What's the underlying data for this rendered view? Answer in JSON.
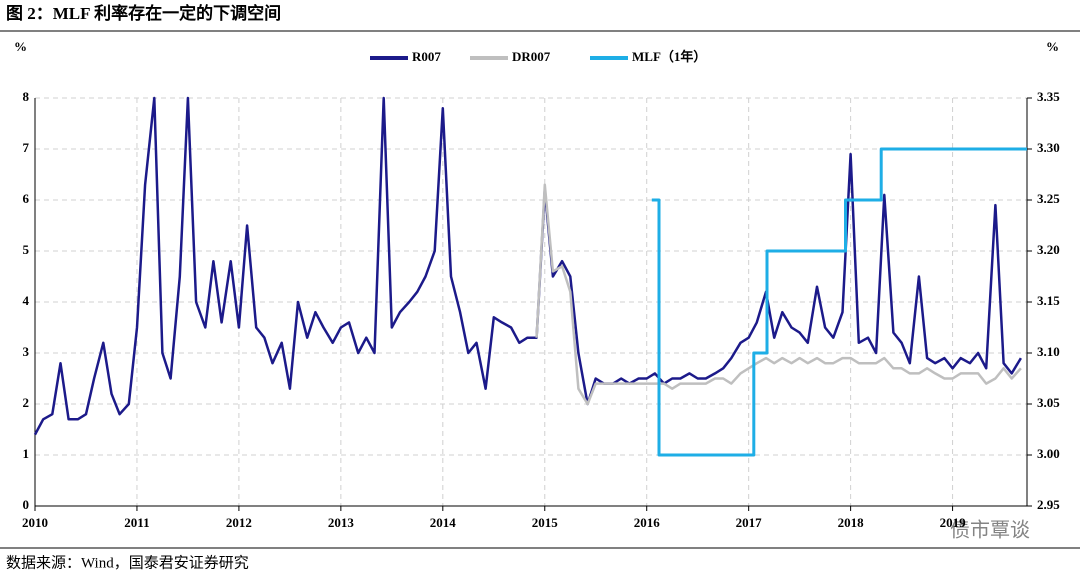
{
  "chart_data": {
    "type": "line",
    "title": "图 2：MLF 利率存在一定的下调空间",
    "y_unit": "%",
    "y2_unit": "%",
    "source": "数据来源：Wind，国泰君安证券研究",
    "watermark": "债市覃谈",
    "xlim": [
      2010,
      2019.73
    ],
    "xticks": [
      2010,
      2011,
      2012,
      2013,
      2014,
      2015,
      2016,
      2017,
      2018,
      2019
    ],
    "ylim": [
      0,
      8
    ],
    "yticks": [
      0,
      1,
      2,
      3,
      4,
      5,
      6,
      7,
      8
    ],
    "y2lim": [
      2.95,
      3.35
    ],
    "y2ticks": [
      2.95,
      {
        "value": 3.0,
        "label": "3.00"
      },
      3.05,
      {
        "value": 3.1,
        "label": "3.10"
      },
      3.15,
      {
        "value": 3.2,
        "label": "3.20"
      },
      3.25,
      {
        "value": 3.3,
        "label": "3.30"
      },
      3.35
    ],
    "grid": true,
    "legend": "top",
    "series": [
      {
        "name": "R007",
        "color": "#1c1a8a",
        "x": [
          2010.0,
          2010.08,
          2010.17,
          2010.25,
          2010.33,
          2010.42,
          2010.5,
          2010.58,
          2010.67,
          2010.75,
          2010.83,
          2010.92,
          2011.0,
          2011.08,
          2011.17,
          2011.25,
          2011.33,
          2011.42,
          2011.5,
          2011.58,
          2011.67,
          2011.75,
          2011.83,
          2011.92,
          2012.0,
          2012.08,
          2012.17,
          2012.25,
          2012.33,
          2012.42,
          2012.5,
          2012.58,
          2012.67,
          2012.75,
          2012.83,
          2012.92,
          2013.0,
          2013.08,
          2013.17,
          2013.25,
          2013.33,
          2013.42,
          2013.5,
          2013.58,
          2013.67,
          2013.75,
          2013.83,
          2013.92,
          2014.0,
          2014.08,
          2014.17,
          2014.25,
          2014.33,
          2014.42,
          2014.5,
          2014.58,
          2014.67,
          2014.75,
          2014.83,
          2014.92,
          2015.0,
          2015.08,
          2015.17,
          2015.25,
          2015.33,
          2015.42,
          2015.5,
          2015.58,
          2015.67,
          2015.75,
          2015.83,
          2015.92,
          2016.0,
          2016.08,
          2016.17,
          2016.25,
          2016.33,
          2016.42,
          2016.5,
          2016.58,
          2016.67,
          2016.75,
          2016.83,
          2016.92,
          2017.0,
          2017.08,
          2017.17,
          2017.25,
          2017.33,
          2017.42,
          2017.5,
          2017.58,
          2017.67,
          2017.75,
          2017.83,
          2017.92,
          2018.0,
          2018.08,
          2018.17,
          2018.25,
          2018.33,
          2018.42,
          2018.5,
          2018.58,
          2018.67,
          2018.75,
          2018.83,
          2018.92,
          2019.0,
          2019.08,
          2019.17,
          2019.25,
          2019.33,
          2019.42,
          2019.5,
          2019.58,
          2019.67
        ],
        "values": [
          1.4,
          1.7,
          1.8,
          2.8,
          1.7,
          1.7,
          1.8,
          2.5,
          3.2,
          2.2,
          1.8,
          2.0,
          3.5,
          6.3,
          8.0,
          3.0,
          2.5,
          4.5,
          8.0,
          4.0,
          3.5,
          4.8,
          3.6,
          4.8,
          3.5,
          5.5,
          3.5,
          3.3,
          2.8,
          3.2,
          2.3,
          4.0,
          3.3,
          3.8,
          3.5,
          3.2,
          3.5,
          3.6,
          3.0,
          3.3,
          3.0,
          8.0,
          3.5,
          3.8,
          4.0,
          4.2,
          4.5,
          5.0,
          7.8,
          4.5,
          3.8,
          3.0,
          3.2,
          2.3,
          3.7,
          3.6,
          3.5,
          3.2,
          3.3,
          3.3,
          6.2,
          4.5,
          4.8,
          4.5,
          3.0,
          2.0,
          2.5,
          2.4,
          2.4,
          2.5,
          2.4,
          2.5,
          2.5,
          2.6,
          2.4,
          2.5,
          2.5,
          2.6,
          2.5,
          2.5,
          2.6,
          2.7,
          2.9,
          3.2,
          3.3,
          3.6,
          4.2,
          3.3,
          3.8,
          3.5,
          3.4,
          3.2,
          4.3,
          3.5,
          3.3,
          3.8,
          6.9,
          3.2,
          3.3,
          3.0,
          6.1,
          3.4,
          3.2,
          2.8,
          4.5,
          2.9,
          2.8,
          2.9,
          2.7,
          2.9,
          2.8,
          3.0,
          2.7,
          5.9,
          2.8,
          2.6,
          2.9
        ]
      },
      {
        "name": "DR007",
        "color": "#bfbfbf",
        "x": [
          2014.92,
          2015.0,
          2015.08,
          2015.17,
          2015.25,
          2015.33,
          2015.42,
          2015.5,
          2015.58,
          2015.67,
          2015.75,
          2015.83,
          2015.92,
          2016.0,
          2016.08,
          2016.17,
          2016.25,
          2016.33,
          2016.42,
          2016.5,
          2016.58,
          2016.67,
          2016.75,
          2016.83,
          2016.92,
          2017.0,
          2017.08,
          2017.17,
          2017.25,
          2017.33,
          2017.42,
          2017.5,
          2017.58,
          2017.67,
          2017.75,
          2017.83,
          2017.92,
          2018.0,
          2018.08,
          2018.17,
          2018.25,
          2018.33,
          2018.42,
          2018.5,
          2018.58,
          2018.67,
          2018.75,
          2018.83,
          2018.92,
          2019.0,
          2019.08,
          2019.17,
          2019.25,
          2019.33,
          2019.42,
          2019.5,
          2019.58,
          2019.67
        ],
        "values": [
          3.3,
          6.3,
          4.6,
          4.7,
          4.2,
          2.3,
          2.0,
          2.4,
          2.4,
          2.4,
          2.4,
          2.4,
          2.4,
          2.4,
          2.4,
          2.4,
          2.3,
          2.4,
          2.4,
          2.4,
          2.4,
          2.5,
          2.5,
          2.4,
          2.6,
          2.7,
          2.8,
          2.9,
          2.8,
          2.9,
          2.8,
          2.9,
          2.8,
          2.9,
          2.8,
          2.8,
          2.9,
          2.9,
          2.8,
          2.8,
          2.8,
          2.9,
          2.7,
          2.7,
          2.6,
          2.6,
          2.7,
          2.6,
          2.5,
          2.5,
          2.6,
          2.6,
          2.6,
          2.4,
          2.5,
          2.7,
          2.5,
          2.7
        ]
      },
      {
        "name": "MLF（1年）",
        "color": "#1eaee6",
        "axis": "y2",
        "x": [
          2016.05,
          2016.12,
          2016.12,
          2017.05,
          2017.05,
          2017.18,
          2017.18,
          2017.95,
          2017.95,
          2018.3,
          2018.3,
          2019.73
        ],
        "values": [
          3.25,
          3.25,
          3.0,
          3.0,
          3.1,
          3.1,
          3.2,
          3.2,
          3.25,
          3.25,
          3.3,
          3.3
        ]
      }
    ]
  }
}
